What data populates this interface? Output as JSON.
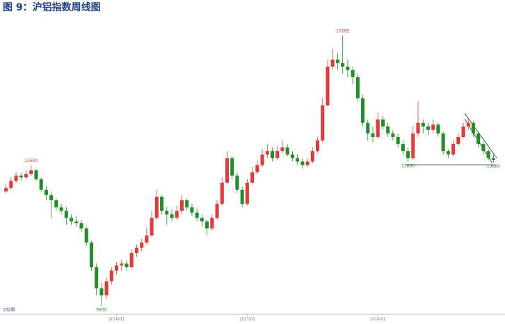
{
  "chart_data": {
    "type": "candlestick",
    "title": "图 9：沪铝指数周线图",
    "corner_label": "102周",
    "up_color": "#e23a3a",
    "down_color": "#1f8f2a",
    "xlim": [
      0,
      98
    ],
    "ylim": [
      9400,
      17700
    ],
    "xticks": [
      {
        "value": 22.5,
        "label": "2016/01"
      },
      {
        "value": 48.5,
        "label": "2017/01"
      },
      {
        "value": 74.5,
        "label": "2018/01"
      }
    ],
    "open": [
      12850,
      12950,
      13150,
      13300,
      13250,
      13350,
      13450,
      13200,
      12900,
      12750,
      12600,
      12400,
      12300,
      12100,
      12000,
      11950,
      11800,
      11400,
      10700,
      10100,
      9900,
      10300,
      10600,
      10750,
      10800,
      10700,
      11100,
      11250,
      11400,
      11600,
      12100,
      12700,
      12300,
      12200,
      12100,
      12300,
      12600,
      12400,
      12250,
      12100,
      12000,
      11800,
      12100,
      12500,
      13100,
      13800,
      13300,
      12900,
      12500,
      13100,
      13400,
      13600,
      13900,
      14000,
      13800,
      14000,
      14100,
      13900,
      13800,
      13700,
      13600,
      13700,
      14000,
      14300,
      15300,
      16400,
      16600,
      16500,
      16400,
      16300,
      16100,
      15500,
      14800,
      14500,
      14400,
      14900,
      14700,
      14500,
      14400,
      14200,
      14000,
      13800,
      14500,
      14800,
      14700,
      14600,
      14750,
      14500,
      14000,
      13900,
      14200,
      14400,
      14700,
      14800,
      14500,
      14200,
      14000,
      13800
    ],
    "high": [
      13050,
      13250,
      13400,
      13380,
      13450,
      13600,
      13500,
      13250,
      13000,
      12850,
      12650,
      12500,
      12400,
      12200,
      12150,
      12050,
      11850,
      11450,
      10800,
      10250,
      10400,
      10700,
      10850,
      10900,
      10900,
      11200,
      11350,
      11500,
      11800,
      12300,
      12900,
      12750,
      12400,
      12350,
      12450,
      12750,
      12650,
      12500,
      12350,
      12200,
      12050,
      12200,
      12600,
      13250,
      14000,
      13850,
      13400,
      13000,
      13200,
      13550,
      13750,
      14050,
      14200,
      14100,
      14150,
      14300,
      14200,
      14000,
      13900,
      13800,
      13800,
      14100,
      14400,
      15500,
      16600,
      16900,
      16800,
      17285,
      16600,
      16400,
      16200,
      15600,
      14900,
      14700,
      15100,
      15000,
      14800,
      14600,
      14500,
      14300,
      14100,
      14700,
      15400,
      14900,
      14800,
      14900,
      14800,
      14550,
      14050,
      14300,
      14500,
      14800,
      14950,
      14850,
      14550,
      14250,
      14050,
      13900
    ],
    "low": [
      12800,
      12900,
      13100,
      13150,
      13200,
      13300,
      13150,
      12850,
      12600,
      12100,
      12300,
      12200,
      11900,
      11900,
      11850,
      11700,
      11300,
      10600,
      9900,
      9600,
      9800,
      10200,
      10500,
      10600,
      10600,
      10650,
      11000,
      11150,
      11350,
      11550,
      12050,
      12200,
      11900,
      12000,
      12050,
      12200,
      12300,
      12150,
      12000,
      11850,
      11600,
      11750,
      12050,
      12450,
      13050,
      13200,
      12800,
      12400,
      12450,
      13050,
      13350,
      13550,
      13800,
      13700,
      13750,
      13950,
      13850,
      13700,
      13600,
      13500,
      13550,
      13650,
      13950,
      14250,
      15250,
      16300,
      16300,
      16200,
      16100,
      15900,
      15400,
      14700,
      14300,
      14250,
      14350,
      14600,
      14400,
      14300,
      14100,
      13900,
      13690,
      13750,
      14400,
      14500,
      14450,
      14500,
      14400,
      13900,
      13800,
      13850,
      14150,
      14350,
      14600,
      14400,
      14100,
      13900,
      13750,
      13680
    ],
    "close": [
      12950,
      13150,
      13300,
      13250,
      13350,
      13450,
      13200,
      12900,
      12750,
      12600,
      12400,
      12300,
      12100,
      12000,
      11950,
      11800,
      11400,
      10700,
      10100,
      9900,
      10300,
      10600,
      10750,
      10800,
      10700,
      11100,
      11250,
      11400,
      11600,
      12100,
      12700,
      12300,
      12200,
      12100,
      12300,
      12600,
      12400,
      12250,
      12100,
      12000,
      11800,
      12100,
      12500,
      13100,
      13800,
      13300,
      12900,
      12500,
      13100,
      13400,
      13600,
      13900,
      14000,
      13800,
      14000,
      14100,
      13900,
      13800,
      13700,
      13600,
      13700,
      14000,
      14300,
      15300,
      16400,
      16600,
      16500,
      16400,
      16300,
      16100,
      15500,
      14800,
      14500,
      14400,
      14900,
      14700,
      14500,
      14400,
      14200,
      14000,
      13800,
      14500,
      14800,
      14700,
      14600,
      14750,
      14500,
      14000,
      13900,
      14200,
      14400,
      14700,
      14800,
      14500,
      14200,
      14000,
      13800,
      13750
    ],
    "annotations": [
      {
        "label": "13600",
        "index": 5,
        "value": 13600,
        "color": "#e23a3a"
      },
      {
        "label": "9600",
        "index": 19,
        "value": 9600,
        "color": "#1f8f2a"
      },
      {
        "label": "17285",
        "index": 67,
        "value": 17285,
        "color": "#e23a3a"
      },
      {
        "label": "13690",
        "index": 80,
        "value": 13690,
        "color": "#1f8f2a"
      },
      {
        "label": "13680",
        "index": 97,
        "value": 13680,
        "color": "#1f8f2a"
      }
    ]
  }
}
